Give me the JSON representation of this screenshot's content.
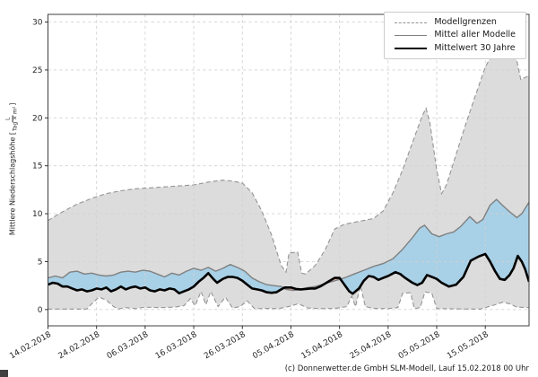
{
  "footer": {
    "text": "(c) Donnerwetter.de GmbH SLM-Modell, Lauf 15.02.2018 00 Uhr"
  },
  "ylabel": {
    "text": "Mittlere Niederschlagshöhe ",
    "unit_open": "[",
    "unit_num": "L",
    "unit_den": "Tag × m²",
    "unit_close": "]"
  },
  "legend": {
    "position": "top-right",
    "items": [
      {
        "label": "Modellgrenzen",
        "style": "dashed",
        "color": "#949494"
      },
      {
        "label": "Mittel aller Modelle",
        "style": "solid",
        "color": "#808080"
      },
      {
        "label": "Mittelwert 30 Jahre",
        "style": "solid-bold",
        "color": "#000000"
      }
    ]
  },
  "chart_data": {
    "type": "line",
    "title": "",
    "xlabel": "",
    "ylabel": "Mittlere Niederschlagshöhe [L/(Tag × m²)]",
    "x_unit": "days since 14.02.2018",
    "xlim": [
      0,
      99
    ],
    "ylim": [
      -1.7,
      30.8
    ],
    "grid": true,
    "y_ticks": [
      0,
      5,
      10,
      15,
      20,
      25,
      30
    ],
    "x_ticks": {
      "days": [
        0,
        10,
        20,
        30,
        40,
        50,
        60,
        70,
        80,
        90
      ],
      "labels": [
        "14.02.2018",
        "24.02.2018",
        "06.03.2018",
        "16.03.2018",
        "26.03.2018",
        "05.04.2018",
        "15.04.2018",
        "25.04.2018",
        "05.05.2018",
        "15.05.2018"
      ]
    },
    "fills": {
      "envelope_color": "#dcdcdc",
      "above_color": "#a8d0e6",
      "below_color": "#f4b8ac"
    },
    "series": [
      {
        "name": "model_max",
        "label": "Modellgrenzen (oben)",
        "color": "#949494",
        "width": 1.1,
        "dashed": true,
        "points": [
          [
            0,
            9.3
          ],
          [
            3,
            10.2
          ],
          [
            6,
            11.0
          ],
          [
            9,
            11.6
          ],
          [
            12,
            12.1
          ],
          [
            15,
            12.4
          ],
          [
            18,
            12.6
          ],
          [
            21,
            12.7
          ],
          [
            24,
            12.8
          ],
          [
            27,
            12.9
          ],
          [
            30,
            13.0
          ],
          [
            33,
            13.3
          ],
          [
            36,
            13.5
          ],
          [
            38,
            13.4
          ],
          [
            40,
            13.2
          ],
          [
            42,
            12.2
          ],
          [
            44,
            10.3
          ],
          [
            46,
            7.8
          ],
          [
            48,
            4.6
          ],
          [
            49,
            3.9
          ],
          [
            49.6,
            5.9
          ],
          [
            51.4,
            6.0
          ],
          [
            52.2,
            3.8
          ],
          [
            53,
            3.7
          ],
          [
            55,
            4.6
          ],
          [
            57,
            6.2
          ],
          [
            59,
            8.4
          ],
          [
            61,
            8.9
          ],
          [
            63,
            9.1
          ],
          [
            65,
            9.3
          ],
          [
            67,
            9.5
          ],
          [
            69,
            10.3
          ],
          [
            71,
            12.2
          ],
          [
            73,
            14.6
          ],
          [
            75,
            17.4
          ],
          [
            77,
            20.2
          ],
          [
            77.8,
            21.0
          ],
          [
            78.6,
            19.5
          ],
          [
            80,
            14.6
          ],
          [
            81,
            12.1
          ],
          [
            82,
            13.0
          ],
          [
            84,
            16.2
          ],
          [
            86,
            19.4
          ],
          [
            88,
            22.4
          ],
          [
            90,
            25.3
          ],
          [
            91.5,
            26.7
          ],
          [
            95,
            26.8
          ],
          [
            96.3,
            26.4
          ],
          [
            97.3,
            24.0
          ],
          [
            99,
            24.4
          ]
        ]
      },
      {
        "name": "model_min",
        "label": "Modellgrenzen (unten)",
        "color": "#949494",
        "width": 1.1,
        "dashed": true,
        "points": [
          [
            0,
            0.05
          ],
          [
            8,
            0.05
          ],
          [
            9,
            0.6
          ],
          [
            10.5,
            1.3
          ],
          [
            12,
            1.0
          ],
          [
            13.5,
            0.3
          ],
          [
            14.5,
            0.05
          ],
          [
            16,
            0.2
          ],
          [
            18,
            0.1
          ],
          [
            20,
            0.25
          ],
          [
            23,
            0.2
          ],
          [
            26,
            0.25
          ],
          [
            28,
            0.4
          ],
          [
            29.3,
            1.15
          ],
          [
            30.3,
            0.4
          ],
          [
            31.5,
            1.9
          ],
          [
            32.5,
            0.5
          ],
          [
            33.5,
            1.9
          ],
          [
            35,
            0.3
          ],
          [
            36.5,
            1.3
          ],
          [
            38,
            0.15
          ],
          [
            39.5,
            0.3
          ],
          [
            41,
            0.9
          ],
          [
            42.5,
            0.1
          ],
          [
            45,
            0.12
          ],
          [
            47.5,
            0.1
          ],
          [
            49.5,
            0.3
          ],
          [
            51.5,
            0.6
          ],
          [
            53.5,
            0.15
          ],
          [
            56,
            0.1
          ],
          [
            59,
            0.12
          ],
          [
            61.5,
            0.3
          ],
          [
            62.5,
            1.4
          ],
          [
            63.3,
            0.3
          ],
          [
            64.3,
            2.5
          ],
          [
            65.3,
            0.3
          ],
          [
            67,
            0.12
          ],
          [
            70,
            0.1
          ],
          [
            72,
            0.2
          ],
          [
            73,
            1.7
          ],
          [
            74.6,
            1.75
          ],
          [
            75.4,
            0.1
          ],
          [
            76.6,
            0.2
          ],
          [
            77.6,
            1.85
          ],
          [
            79,
            1.7
          ],
          [
            80,
            0.1
          ],
          [
            83,
            0.08
          ],
          [
            86,
            0.05
          ],
          [
            89,
            0.05
          ],
          [
            92,
            0.5
          ],
          [
            93.5,
            0.75
          ],
          [
            95,
            0.6
          ],
          [
            96.5,
            0.25
          ],
          [
            99,
            0.2
          ]
        ]
      },
      {
        "name": "model_mean",
        "label": "Mittel aller Modelle",
        "color": "#808080",
        "width": 1.4,
        "dashed": false,
        "points": [
          [
            0,
            3.3
          ],
          [
            1.5,
            3.5
          ],
          [
            3,
            3.3
          ],
          [
            4.5,
            3.9
          ],
          [
            6,
            4.0
          ],
          [
            7.5,
            3.7
          ],
          [
            9,
            3.8
          ],
          [
            10.5,
            3.6
          ],
          [
            12,
            3.5
          ],
          [
            13.5,
            3.6
          ],
          [
            15,
            3.9
          ],
          [
            16.5,
            4.0
          ],
          [
            18,
            3.9
          ],
          [
            19.5,
            4.1
          ],
          [
            21,
            4.0
          ],
          [
            22.5,
            3.7
          ],
          [
            24,
            3.4
          ],
          [
            25.5,
            3.8
          ],
          [
            27,
            3.6
          ],
          [
            28.5,
            4.0
          ],
          [
            30,
            4.3
          ],
          [
            31.5,
            4.1
          ],
          [
            33,
            4.4
          ],
          [
            34.5,
            4.0
          ],
          [
            36,
            4.3
          ],
          [
            37.5,
            4.7
          ],
          [
            39,
            4.4
          ],
          [
            40.5,
            4.0
          ],
          [
            42,
            3.3
          ],
          [
            43.5,
            2.9
          ],
          [
            45,
            2.6
          ],
          [
            46.5,
            2.5
          ],
          [
            48,
            2.4
          ],
          [
            49,
            2.1
          ],
          [
            50.5,
            2.0
          ],
          [
            52,
            2.1
          ],
          [
            53.5,
            2.3
          ],
          [
            55,
            2.4
          ],
          [
            57,
            2.7
          ],
          [
            59,
            3.0
          ],
          [
            61,
            3.3
          ],
          [
            63,
            3.7
          ],
          [
            65,
            4.1
          ],
          [
            67,
            4.5
          ],
          [
            69,
            4.8
          ],
          [
            71,
            5.3
          ],
          [
            73,
            6.3
          ],
          [
            75,
            7.5
          ],
          [
            76.5,
            8.5
          ],
          [
            77.5,
            8.8
          ],
          [
            79,
            7.9
          ],
          [
            80.5,
            7.6
          ],
          [
            82,
            7.9
          ],
          [
            83.5,
            8.1
          ],
          [
            85,
            8.7
          ],
          [
            86.8,
            9.7
          ],
          [
            88.3,
            9.0
          ],
          [
            89.5,
            9.4
          ],
          [
            91,
            10.9
          ],
          [
            92.3,
            11.5
          ],
          [
            93.5,
            10.9
          ],
          [
            95,
            10.2
          ],
          [
            96.5,
            9.6
          ],
          [
            97.5,
            10.0
          ],
          [
            99,
            11.2
          ]
        ]
      },
      {
        "name": "mean_30y",
        "label": "Mittelwert 30 Jahre",
        "color": "#000000",
        "width": 2.6,
        "dashed": false,
        "points": [
          [
            0,
            2.6
          ],
          [
            1,
            2.8
          ],
          [
            2,
            2.7
          ],
          [
            3,
            2.4
          ],
          [
            4,
            2.4
          ],
          [
            5,
            2.2
          ],
          [
            6,
            2.0
          ],
          [
            7,
            2.1
          ],
          [
            8,
            1.9
          ],
          [
            9,
            2.0
          ],
          [
            10,
            2.2
          ],
          [
            11,
            2.1
          ],
          [
            12,
            2.3
          ],
          [
            13,
            1.9
          ],
          [
            14,
            2.1
          ],
          [
            15,
            2.4
          ],
          [
            16,
            2.1
          ],
          [
            17,
            2.3
          ],
          [
            18,
            2.4
          ],
          [
            19,
            2.2
          ],
          [
            20,
            2.3
          ],
          [
            21,
            2.0
          ],
          [
            22,
            1.9
          ],
          [
            23,
            2.1
          ],
          [
            24,
            2.0
          ],
          [
            25,
            2.2
          ],
          [
            26,
            2.1
          ],
          [
            27,
            1.7
          ],
          [
            28,
            1.9
          ],
          [
            29,
            2.1
          ],
          [
            30,
            2.4
          ],
          [
            31,
            2.9
          ],
          [
            32,
            3.3
          ],
          [
            33,
            3.8
          ],
          [
            34,
            3.2
          ],
          [
            34.8,
            2.8
          ],
          [
            36,
            3.2
          ],
          [
            37,
            3.4
          ],
          [
            38,
            3.4
          ],
          [
            39,
            3.3
          ],
          [
            40,
            3.0
          ],
          [
            41,
            2.6
          ],
          [
            42,
            2.2
          ],
          [
            43,
            2.1
          ],
          [
            44,
            2.0
          ],
          [
            45,
            1.8
          ],
          [
            46,
            1.75
          ],
          [
            47,
            1.8
          ],
          [
            48,
            2.1
          ],
          [
            48.7,
            2.3
          ],
          [
            50,
            2.3
          ],
          [
            51,
            2.15
          ],
          [
            52,
            2.1
          ],
          [
            53,
            2.15
          ],
          [
            54,
            2.2
          ],
          [
            55,
            2.2
          ],
          [
            56,
            2.4
          ],
          [
            57,
            2.7
          ],
          [
            58,
            3.0
          ],
          [
            59,
            3.3
          ],
          [
            60,
            3.3
          ],
          [
            61,
            2.6
          ],
          [
            62,
            1.9
          ],
          [
            62.7,
            1.65
          ],
          [
            64,
            2.2
          ],
          [
            65,
            3.0
          ],
          [
            66,
            3.5
          ],
          [
            67,
            3.4
          ],
          [
            68,
            3.1
          ],
          [
            69,
            3.3
          ],
          [
            70,
            3.5
          ],
          [
            71.5,
            3.9
          ],
          [
            72.5,
            3.7
          ],
          [
            73.5,
            3.3
          ],
          [
            75,
            2.8
          ],
          [
            76,
            2.55
          ],
          [
            77,
            2.8
          ],
          [
            78,
            3.6
          ],
          [
            79,
            3.4
          ],
          [
            80,
            3.2
          ],
          [
            81,
            2.8
          ],
          [
            82.5,
            2.4
          ],
          [
            84,
            2.6
          ],
          [
            85.5,
            3.4
          ],
          [
            87,
            5.1
          ],
          [
            88.5,
            5.5
          ],
          [
            90,
            5.8
          ],
          [
            91,
            5.0
          ],
          [
            92,
            4.0
          ],
          [
            93,
            3.2
          ],
          [
            94,
            3.1
          ],
          [
            95,
            3.6
          ],
          [
            95.8,
            4.3
          ],
          [
            96.7,
            5.6
          ],
          [
            97.5,
            5.0
          ],
          [
            98.2,
            4.2
          ],
          [
            99,
            2.9
          ]
        ]
      }
    ]
  }
}
